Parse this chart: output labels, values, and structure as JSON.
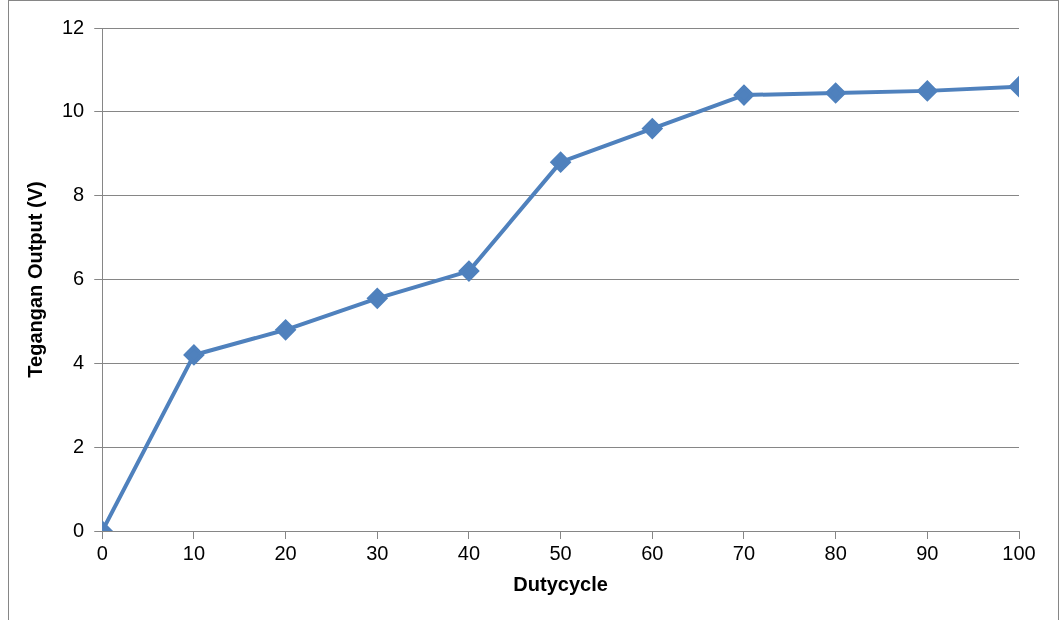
{
  "chart_data": {
    "type": "line",
    "xlabel": "Dutycycle",
    "ylabel": "Tegangan Output (V)",
    "x": [
      0,
      10,
      20,
      30,
      40,
      50,
      60,
      70,
      80,
      90,
      100
    ],
    "series": [
      {
        "color": "#4f81bd",
        "values": [
          0,
          4.2,
          4.8,
          5.55,
          6.2,
          8.8,
          9.6,
          10.4,
          10.45,
          10.5,
          10.6
        ]
      }
    ],
    "xlim": [
      0,
      100
    ],
    "xticks": [
      0,
      10,
      20,
      30,
      40,
      50,
      60,
      70,
      80,
      90,
      100
    ],
    "ylim": [
      0,
      12
    ],
    "yticks": [
      0,
      2,
      4,
      6,
      8,
      10,
      12
    ],
    "grid": "y",
    "legend": false,
    "marker": "diamond",
    "line_style": "solid"
  }
}
